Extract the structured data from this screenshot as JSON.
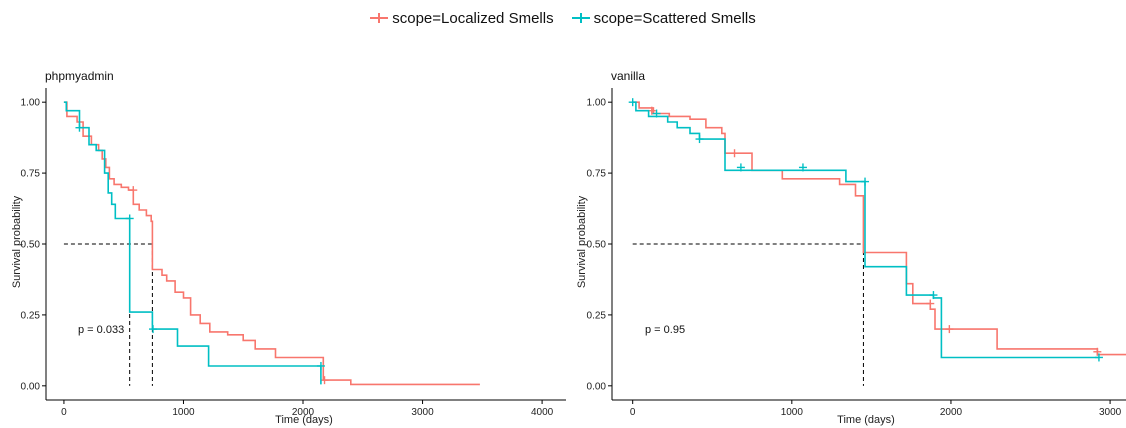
{
  "legend": [
    {
      "label": "scope=Localized Smells",
      "color": "#F8766D"
    },
    {
      "label": "scope=Scattered Smells",
      "color": "#00BFC4"
    }
  ],
  "chart_data": [
    {
      "type": "line",
      "subtype": "step",
      "title": "phpmyadmin",
      "xlabel": "Time (days)",
      "ylabel": "Survival probability",
      "xlim": [
        -150,
        4200
      ],
      "ylim": [
        -0.05,
        1.05
      ],
      "xticks": [
        0,
        1000,
        2000,
        3000,
        4000
      ],
      "yticks": [
        0.0,
        0.25,
        0.5,
        0.75,
        1.0
      ],
      "ytick_labels": [
        "0.00",
        "0.25",
        "0.50",
        "0.75",
        "1.00"
      ],
      "grid": false,
      "legend": "top",
      "annotation": "p = 0.033",
      "median_line": {
        "y": 0.5,
        "x": [
          550,
          740
        ]
      },
      "series": [
        {
          "name": "scope=Localized Smells",
          "color": "#F8766D",
          "points": [
            [
              0,
              1.0
            ],
            [
              25,
              0.95
            ],
            [
              110,
              0.93
            ],
            [
              160,
              0.88
            ],
            [
              230,
              0.85
            ],
            [
              290,
              0.83
            ],
            [
              320,
              0.8
            ],
            [
              350,
              0.77
            ],
            [
              380,
              0.73
            ],
            [
              420,
              0.71
            ],
            [
              480,
              0.7
            ],
            [
              540,
              0.69
            ],
            [
              580,
              0.64
            ],
            [
              630,
              0.62
            ],
            [
              690,
              0.6
            ],
            [
              730,
              0.58
            ],
            [
              740,
              0.41
            ],
            [
              820,
              0.39
            ],
            [
              860,
              0.37
            ],
            [
              930,
              0.33
            ],
            [
              1000,
              0.31
            ],
            [
              1060,
              0.25
            ],
            [
              1140,
              0.22
            ],
            [
              1220,
              0.19
            ],
            [
              1370,
              0.18
            ],
            [
              1500,
              0.16
            ],
            [
              1600,
              0.13
            ],
            [
              1770,
              0.1
            ],
            [
              2170,
              0.02
            ],
            [
              2400,
              0.005
            ],
            [
              3480,
              0.005
            ]
          ],
          "censored": [
            [
              580,
              0.69
            ],
            [
              2180,
              0.02
            ]
          ]
        },
        {
          "name": "scope=Scattered Smells",
          "color": "#00BFC4",
          "points": [
            [
              0,
              1.0
            ],
            [
              20,
              0.97
            ],
            [
              130,
              0.91
            ],
            [
              210,
              0.85
            ],
            [
              270,
              0.83
            ],
            [
              340,
              0.75
            ],
            [
              370,
              0.68
            ],
            [
              400,
              0.64
            ],
            [
              430,
              0.59
            ],
            [
              550,
              0.26
            ],
            [
              740,
              0.2
            ],
            [
              950,
              0.14
            ],
            [
              1210,
              0.07
            ],
            [
              2150,
              0.005
            ]
          ],
          "censored": [
            [
              130,
              0.91
            ],
            [
              550,
              0.59
            ],
            [
              745,
              0.2
            ],
            [
              2150,
              0.07
            ]
          ]
        }
      ]
    },
    {
      "type": "line",
      "subtype": "step",
      "title": "vanilla",
      "xlabel": "Time (days)",
      "ylabel": "Survival probability",
      "xlim": [
        -130,
        3100
      ],
      "ylim": [
        -0.05,
        1.05
      ],
      "xticks": [
        0,
        1000,
        2000,
        3000
      ],
      "yticks": [
        0.0,
        0.25,
        0.5,
        0.75,
        1.0
      ],
      "ytick_labels": [
        "0.00",
        "0.25",
        "0.50",
        "0.75",
        "1.00"
      ],
      "grid": false,
      "legend": "top",
      "annotation": "p = 0.95",
      "median_line": {
        "y": 0.5,
        "x": [
          1450
        ]
      },
      "series": [
        {
          "name": "scope=Localized Smells",
          "color": "#F8766D",
          "points": [
            [
              0,
              1.0
            ],
            [
              40,
              0.98
            ],
            [
              130,
              0.96
            ],
            [
              230,
              0.95
            ],
            [
              360,
              0.94
            ],
            [
              460,
              0.91
            ],
            [
              560,
              0.89
            ],
            [
              580,
              0.82
            ],
            [
              750,
              0.76
            ],
            [
              940,
              0.73
            ],
            [
              1300,
              0.71
            ],
            [
              1400,
              0.67
            ],
            [
              1450,
              0.47
            ],
            [
              1720,
              0.36
            ],
            [
              1760,
              0.29
            ],
            [
              1870,
              0.27
            ],
            [
              1900,
              0.2
            ],
            [
              2290,
              0.13
            ],
            [
              2920,
              0.11
            ],
            [
              3100,
              0.11
            ]
          ],
          "censored": [
            [
              120,
              0.97
            ],
            [
              640,
              0.82
            ],
            [
              1870,
              0.29
            ],
            [
              1990,
              0.2
            ],
            [
              2920,
              0.12
            ]
          ]
        },
        {
          "name": "scope=Scattered Smells",
          "color": "#00BFC4",
          "points": [
            [
              0,
              1.0
            ],
            [
              20,
              0.97
            ],
            [
              100,
              0.95
            ],
            [
              220,
              0.93
            ],
            [
              280,
              0.91
            ],
            [
              360,
              0.89
            ],
            [
              420,
              0.87
            ],
            [
              580,
              0.76
            ],
            [
              1340,
              0.72
            ],
            [
              1460,
              0.42
            ],
            [
              1720,
              0.32
            ],
            [
              1890,
              0.31
            ],
            [
              1940,
              0.1
            ],
            [
              2930,
              0.1
            ]
          ],
          "censored": [
            [
              0,
              1.0
            ],
            [
              150,
              0.96
            ],
            [
              420,
              0.87
            ],
            [
              680,
              0.77
            ],
            [
              1070,
              0.77
            ],
            [
              1460,
              0.72
            ],
            [
              1890,
              0.32
            ],
            [
              2930,
              0.1
            ]
          ]
        }
      ]
    }
  ]
}
